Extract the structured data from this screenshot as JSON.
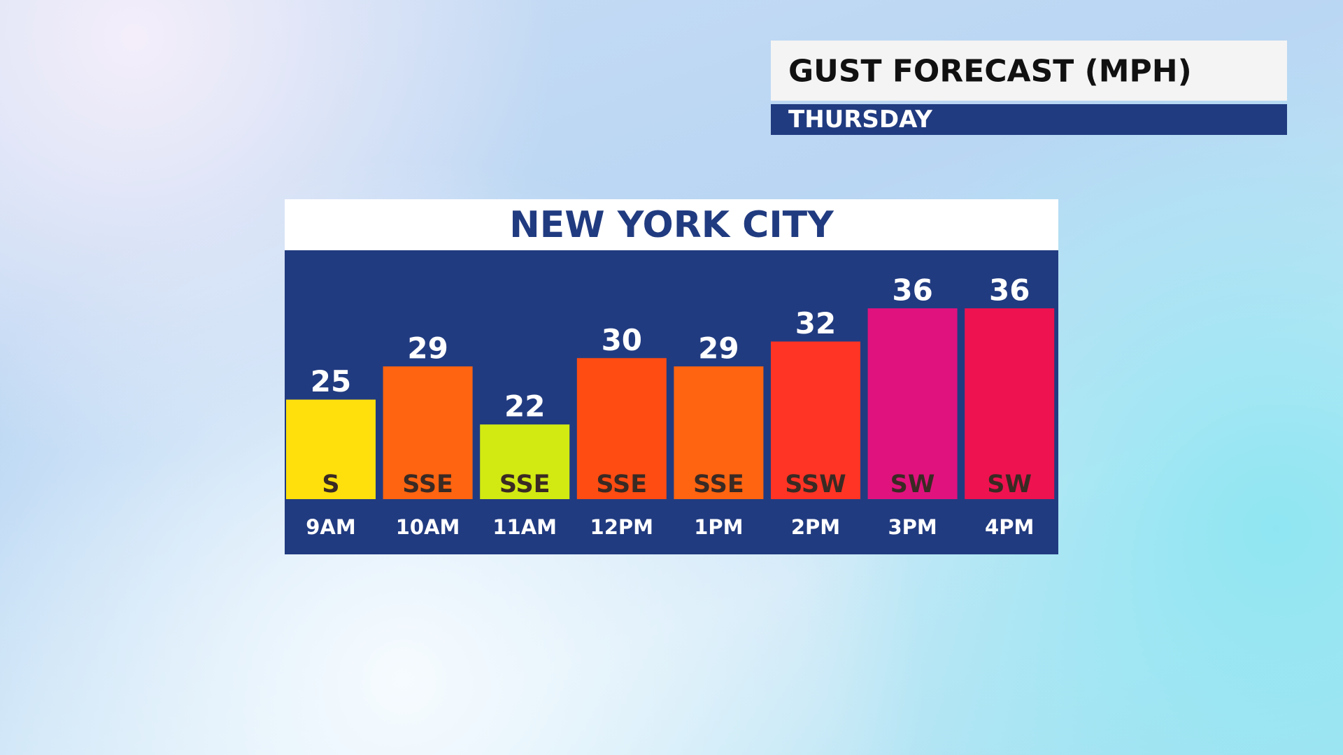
{
  "chart_data": {
    "type": "bar",
    "title": "GUST FORECAST (MPH)",
    "subtitle": "THURSDAY",
    "chart_title": "NEW YORK CITY",
    "categories": [
      "9AM",
      "10AM",
      "11AM",
      "12PM",
      "1PM",
      "2PM",
      "3PM",
      "4PM"
    ],
    "values": [
      25,
      29,
      22,
      30,
      29,
      32,
      36,
      36
    ],
    "directions": [
      "S",
      "SSE",
      "SSE",
      "SSE",
      "SSE",
      "SSW",
      "SW",
      "SW"
    ],
    "colors": [
      "#ffe00c",
      "#ff6410",
      "#d2ea12",
      "#ff4c12",
      "#ff6410",
      "#ff3424",
      "#e0127e",
      "#ee1250"
    ],
    "ylim": [
      13,
      43
    ]
  }
}
